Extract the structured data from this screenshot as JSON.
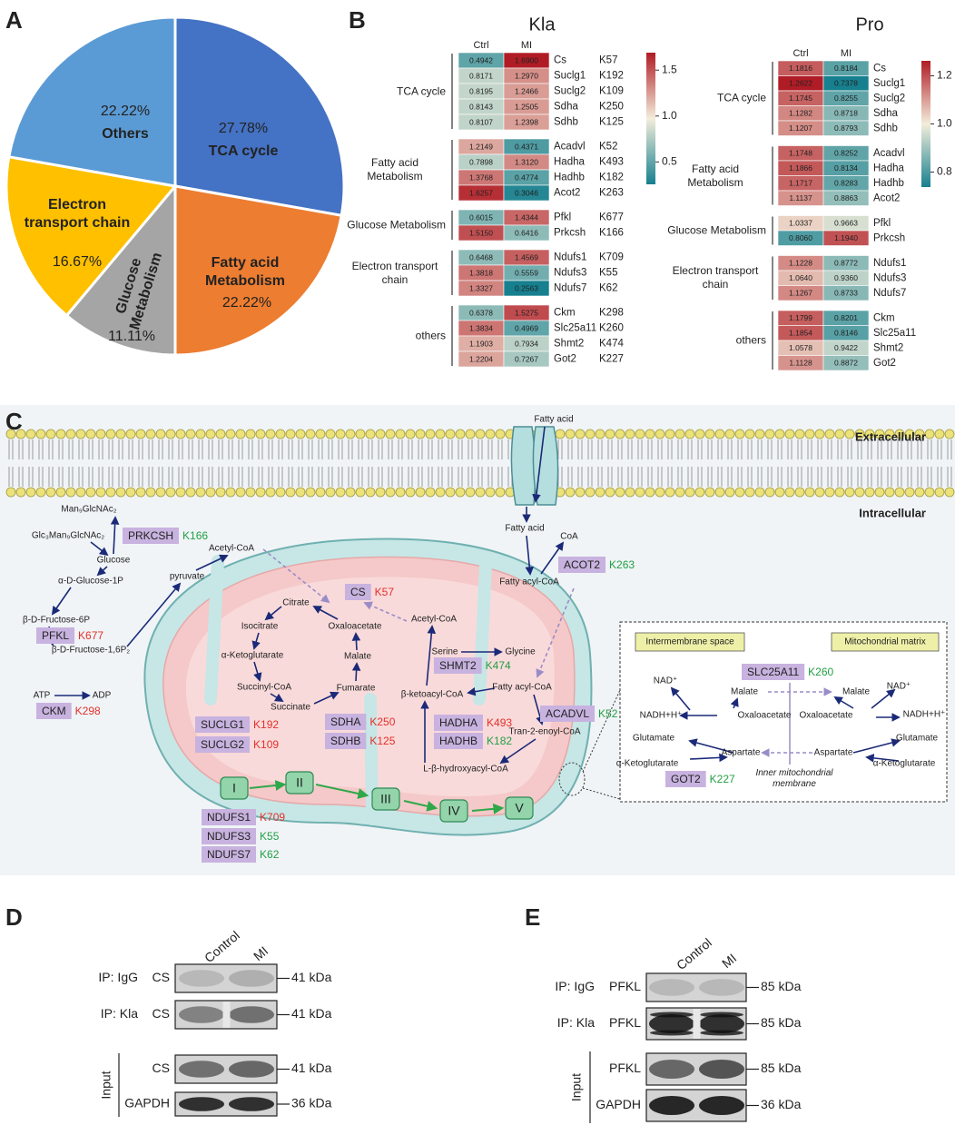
{
  "panel_labels": [
    "A",
    "B",
    "C",
    "D",
    "E"
  ],
  "chart_data": [
    {
      "type": "pie",
      "categories": [
        "TCA cycle",
        "Fatty acid Metabolism",
        "Glucose Metabolism",
        "Electron transport chain",
        "Others"
      ],
      "values": [
        27.78,
        22.22,
        11.11,
        16.67,
        22.22
      ],
      "value_labels": [
        "27.78%",
        "22.22%",
        "11.11%",
        "16.67%",
        "22.22%"
      ],
      "colors": [
        "#4472c4",
        "#ed7d31",
        "#a5a5a5",
        "#ffc000",
        "#5b9bd5"
      ]
    },
    {
      "type": "heatmap",
      "title": "Kla",
      "columns": [
        "Ctrl",
        "MI"
      ],
      "groups": [
        {
          "name": "TCA cycle",
          "rows": [
            {
              "gene": "Cs",
              "site": "K57",
              "values": [
                0.4942,
                1.69
              ],
              "value_labels": [
                "0.4942",
                "1.6900"
              ]
            },
            {
              "gene": "Suclg1",
              "site": "K192",
              "values": [
                0.8171,
                1.297
              ],
              "value_labels": [
                "0.8171",
                "1.2970"
              ]
            },
            {
              "gene": "Suclg2",
              "site": "K109",
              "values": [
                0.8195,
                1.2466
              ],
              "value_labels": [
                "0.8195",
                "1.2466"
              ]
            },
            {
              "gene": "Sdha",
              "site": "K250",
              "values": [
                0.8143,
                1.2505
              ],
              "value_labels": [
                "0.8143",
                "1.2505"
              ]
            },
            {
              "gene": "Sdhb",
              "site": "K125",
              "values": [
                0.8107,
                1.2398
              ],
              "value_labels": [
                "0.8107",
                "1.2398"
              ]
            }
          ]
        },
        {
          "name": "Fatty acid Metabolism",
          "rows": [
            {
              "gene": "Acadvl",
              "site": "K52",
              "values": [
                1.2149,
                0.4371
              ],
              "value_labels": [
                "1.2149",
                "0.4371"
              ]
            },
            {
              "gene": "Hadha",
              "site": "K493",
              "values": [
                0.7898,
                1.312
              ],
              "value_labels": [
                "0.7898",
                "1.3120"
              ]
            },
            {
              "gene": "Hadhb",
              "site": "K182",
              "values": [
                1.3768,
                0.4774
              ],
              "value_labels": [
                "1.3768",
                "0.4774"
              ]
            },
            {
              "gene": "Acot2",
              "site": "K263",
              "values": [
                1.6257,
                0.3046
              ],
              "value_labels": [
                "1.6257",
                "0.3046"
              ]
            }
          ]
        },
        {
          "name": "Glucose Metabolism",
          "rows": [
            {
              "gene": "Pfkl",
              "site": "K677",
              "values": [
                0.6015,
                1.4344
              ],
              "value_labels": [
                "0.6015",
                "1.4344"
              ]
            },
            {
              "gene": "Prkcsh",
              "site": "K166",
              "values": [
                1.515,
                0.6416
              ],
              "value_labels": [
                "1.5150",
                "0.6416"
              ]
            }
          ]
        },
        {
          "name": "Electron transport chain",
          "rows": [
            {
              "gene": "Ndufs1",
              "site": "K709",
              "values": [
                0.6468,
                1.4569
              ],
              "value_labels": [
                "0.6468",
                "1.4569"
              ]
            },
            {
              "gene": "Ndufs3",
              "site": "K55",
              "values": [
                1.3818,
                0.5559
              ],
              "value_labels": [
                "1.3818",
                "0.5559"
              ]
            },
            {
              "gene": "Ndufs7",
              "site": "K62",
              "values": [
                1.3327,
                0.2563
              ],
              "value_labels": [
                "1.3327",
                "0.2563"
              ]
            }
          ]
        },
        {
          "name": "others",
          "rows": [
            {
              "gene": "Ckm",
              "site": "K298",
              "values": [
                0.6378,
                1.5275
              ],
              "value_labels": [
                "0.6378",
                "1.5275"
              ]
            },
            {
              "gene": "Slc25a11",
              "site": "K260",
              "values": [
                1.3834,
                0.4969
              ],
              "value_labels": [
                "1.3834",
                "0.4969"
              ]
            },
            {
              "gene": "Shmt2",
              "site": "K474",
              "values": [
                1.1903,
                0.7934
              ],
              "value_labels": [
                "1.1903",
                "0.7934"
              ]
            },
            {
              "gene": "Got2",
              "site": "K227",
              "values": [
                1.2204,
                0.7267
              ],
              "value_labels": [
                "1.2204",
                "0.7267"
              ]
            }
          ]
        }
      ],
      "colorbar": {
        "colors": [
          "#16808f",
          "#f3eddb",
          "#b01c25"
        ],
        "lim": [
          0.2563,
          1.69
        ],
        "ticks": [
          0.5,
          {
            "value": 1,
            "label": "1.0"
          },
          1.5
        ]
      }
    },
    {
      "type": "heatmap",
      "title": "Pro",
      "columns": [
        "Ctrl",
        "MI"
      ],
      "groups": [
        {
          "name": "TCA cycle",
          "rows": [
            {
              "gene": "Cs",
              "values": [
                1.1816,
                0.8184
              ],
              "value_labels": [
                "1.1816",
                "0.8184"
              ]
            },
            {
              "gene": "Suclg1",
              "values": [
                1.2622,
                0.7378
              ],
              "value_labels": [
                "1.2622",
                "0.7378"
              ]
            },
            {
              "gene": "Suclg2",
              "values": [
                1.1745,
                0.8255
              ],
              "value_labels": [
                "1.1745",
                "0.8255"
              ]
            },
            {
              "gene": "Sdha",
              "values": [
                1.1282,
                0.8718
              ],
              "value_labels": [
                "1.1282",
                "0.8718"
              ]
            },
            {
              "gene": "Sdhb",
              "values": [
                1.1207,
                0.8793
              ],
              "value_labels": [
                "1.1207",
                "0.8793"
              ]
            }
          ]
        },
        {
          "name": "Fatty acid Metabolism",
          "rows": [
            {
              "gene": "Acadvl",
              "values": [
                1.1748,
                0.8252
              ],
              "value_labels": [
                "1.1748",
                "0.8252"
              ]
            },
            {
              "gene": "Hadha",
              "values": [
                1.1866,
                0.8134
              ],
              "value_labels": [
                "1.1866",
                "0.8134"
              ]
            },
            {
              "gene": "Hadhb",
              "values": [
                1.1717,
                0.8283
              ],
              "value_labels": [
                "1.1717",
                "0.8283"
              ]
            },
            {
              "gene": "Acot2",
              "values": [
                1.1137,
                0.8863
              ],
              "value_labels": [
                "1.1137",
                "0.8863"
              ]
            }
          ]
        },
        {
          "name": "Glucose Metabolism",
          "rows": [
            {
              "gene": "Pfkl",
              "values": [
                1.0337,
                0.9663
              ],
              "value_labels": [
                "1.0337",
                "0.9663"
              ]
            },
            {
              "gene": "Prkcsh",
              "values": [
                0.806,
                1.194
              ],
              "value_labels": [
                "0.8060",
                "1.1940"
              ]
            }
          ]
        },
        {
          "name": "Electron transport chain",
          "rows": [
            {
              "gene": "Ndufs1",
              "values": [
                1.1228,
                0.8772
              ],
              "value_labels": [
                "1.1228",
                "0.8772"
              ]
            },
            {
              "gene": "Ndufs3",
              "values": [
                1.064,
                0.936
              ],
              "value_labels": [
                "1.0640",
                "0.9360"
              ]
            },
            {
              "gene": "Ndufs7",
              "values": [
                1.1267,
                0.8733
              ],
              "value_labels": [
                "1.1267",
                "0.8733"
              ]
            }
          ]
        },
        {
          "name": "others",
          "rows": [
            {
              "gene": "Ckm",
              "values": [
                1.1799,
                0.8201
              ],
              "value_labels": [
                "1.1799",
                "0.8201"
              ]
            },
            {
              "gene": "Slc25a11",
              "values": [
                1.1854,
                0.8146
              ],
              "value_labels": [
                "1.1854",
                "0.8146"
              ]
            },
            {
              "gene": "Shmt2",
              "values": [
                1.0578,
                0.9422
              ],
              "value_labels": [
                "1.0578",
                "0.9422"
              ]
            },
            {
              "gene": "Got2",
              "values": [
                1.1128,
                0.8872
              ],
              "value_labels": [
                "1.1128",
                "0.8872"
              ]
            }
          ]
        }
      ],
      "colorbar": {
        "colors": [
          "#16808f",
          "#f3eddb",
          "#b01c25"
        ],
        "lim": [
          0.7378,
          1.2622
        ],
        "ticks": [
          0.8,
          {
            "value": 1,
            "label": "1.0"
          },
          1.2
        ]
      }
    }
  ],
  "pathway": {
    "compartments": [
      "Extracellular",
      "Intracellular"
    ],
    "labels": [
      "Fatty acid",
      "Fatty acid",
      "CoA",
      "Fatty acyl-CoA",
      "Man₉GlcNAc₂",
      "Glc₃Man₉GlcNAc₂",
      "Glucose",
      "α-D-Glucose-1P",
      "β-D-Fructose-6P",
      "β-D-Fructose-1,6P₂",
      "pyruvate",
      "Acetyl-CoA",
      "ATP",
      "ADP",
      "Citrate",
      "Isocitrate",
      "α-Ketoglutarate",
      "Succinyl-CoA",
      "Succinate",
      "Fumarate",
      "Malate",
      "Oxaloacetate",
      "Acetyl-CoA",
      "Serine",
      "Glycine",
      "Fatty acyl-CoA",
      "β-ketoacyl-CoA",
      "Tran-2-enoyl-CoA",
      "L-β-hydroxyacyl-CoA",
      "NAD⁺",
      "NADH+H⁺",
      "Malate",
      "Malate",
      "Oxaloacetate",
      "Oxaloacetate",
      "NAD⁺",
      "NADH+H⁺",
      "Glutamate",
      "Glutamate",
      "α-Ketoglutarate",
      "α-Ketoglutarate",
      "Aspartate",
      "Aspartate"
    ],
    "complexes": [
      "I",
      "II",
      "III",
      "IV",
      "V"
    ],
    "inset_titles": [
      "Intermembrane space",
      "Mitochondrial matrix"
    ],
    "membrane_label": "Inner mitochondrial membrane",
    "proteins": [
      {
        "name": "PRKCSH",
        "site": "K166",
        "site_color": "#22a045"
      },
      {
        "name": "PFKL",
        "site": "K677",
        "site_color": "#e3302b"
      },
      {
        "name": "CKM",
        "site": "K298",
        "site_color": "#e3302b"
      },
      {
        "name": "CS",
        "site": "K57",
        "site_color": "#e3302b"
      },
      {
        "name": "SUCLG1",
        "site": "K192",
        "site_color": "#e3302b"
      },
      {
        "name": "SUCLG2",
        "site": "K109",
        "site_color": "#e3302b"
      },
      {
        "name": "SDHA",
        "site": "K250",
        "site_color": "#e3302b"
      },
      {
        "name": "SDHB",
        "site": "K125",
        "site_color": "#e3302b"
      },
      {
        "name": "HADHA",
        "site": "K493",
        "site_color": "#e3302b"
      },
      {
        "name": "HADHB",
        "site": "K182",
        "site_color": "#22a045"
      },
      {
        "name": "SHMT2",
        "site": "K474",
        "site_color": "#22a045"
      },
      {
        "name": "ACADVL",
        "site": "K52",
        "site_color": "#22a045"
      },
      {
        "name": "ACOT2",
        "site": "K263",
        "site_color": "#22a045"
      },
      {
        "name": "SLC25A11",
        "site": "K260",
        "site_color": "#22a045"
      },
      {
        "name": "GOT2",
        "site": "K227",
        "site_color": "#22a045"
      },
      {
        "name": "NDUFS1",
        "site": "K709",
        "site_color": "#e3302b"
      },
      {
        "name": "NDUFS3",
        "site": "K55",
        "site_color": "#22a045"
      },
      {
        "name": "NDUFS7",
        "site": "K62",
        "site_color": "#22a045"
      }
    ]
  },
  "blots": [
    {
      "lanes": [
        "Control",
        "MI"
      ],
      "input_label": "Input",
      "rows": [
        {
          "group": "IP: IgG",
          "protein": "CS",
          "size": "41 kDa"
        },
        {
          "group": "IP: Kla",
          "protein": "CS",
          "size": "41 kDa"
        },
        {
          "protein": "CS",
          "size": "41 kDa"
        },
        {
          "protein": "GAPDH",
          "size": "36 kDa"
        }
      ]
    },
    {
      "lanes": [
        "Control",
        "MI"
      ],
      "input_label": "Input",
      "rows": [
        {
          "group": "IP: IgG",
          "protein": "PFKL",
          "size": "85 kDa"
        },
        {
          "group": "IP: Kla",
          "protein": "PFKL",
          "size": "85 kDa"
        },
        {
          "protein": "PFKL",
          "size": "85 kDa"
        },
        {
          "protein": "GAPDH",
          "size": "36 kDa"
        }
      ]
    }
  ]
}
